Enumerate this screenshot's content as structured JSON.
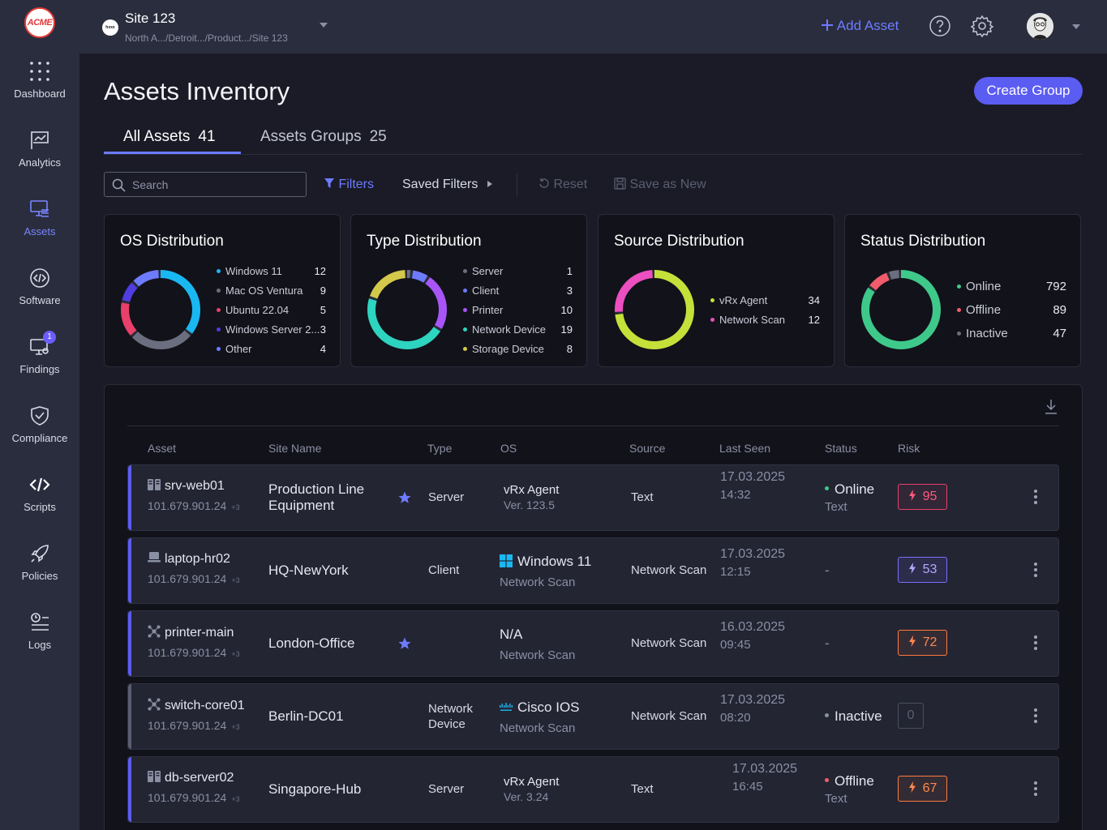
{
  "brand": {
    "logo_text": "ACME"
  },
  "sidebar": {
    "items": [
      {
        "label": "Dashboard",
        "icon": "grid-dots-icon"
      },
      {
        "label": "Analytics",
        "icon": "chart-flag-icon"
      },
      {
        "label": "Assets",
        "icon": "monitor-stack-icon",
        "active": true
      },
      {
        "label": "Software",
        "icon": "code-hex-icon"
      },
      {
        "label": "Findings",
        "icon": "monitor-bug-icon",
        "badge": "1"
      },
      {
        "label": "Compliance",
        "icon": "shield-check-icon"
      },
      {
        "label": "Scripts",
        "icon": "code-brackets-icon"
      },
      {
        "label": "Policies",
        "icon": "rocket-icon"
      },
      {
        "label": "Logs",
        "icon": "list-clock-icon"
      }
    ]
  },
  "topbar": {
    "site_dot": "hxxx",
    "site_title": "Site 123",
    "breadcrumb": "North A.../Detroit.../Product.../Site 123",
    "add_asset": "Add Asset"
  },
  "page": {
    "title": "Assets Inventory",
    "create_group": "Create Group",
    "tabs": [
      {
        "label": "All Assets",
        "count": "41",
        "active": true
      },
      {
        "label": "Assets Groups",
        "count": "25"
      }
    ]
  },
  "toolbar": {
    "search_placeholder": "Search",
    "filters": "Filters",
    "saved_filters": "Saved Filters",
    "reset": "Reset",
    "save_as_new": "Save as New"
  },
  "cards": [
    {
      "title": "OS Distribution",
      "items": [
        {
          "label": "Windows 11",
          "value": "12",
          "color": "#1ab8f2"
        },
        {
          "label": "Mac OS Ventura",
          "value": "9",
          "color": "#6b6e7e"
        },
        {
          "label": "Ubuntu 22.04",
          "value": "5",
          "color": "#e8406a"
        },
        {
          "label": "Windows Server 2...",
          "value": "3",
          "color": "#4f3de0"
        },
        {
          "label": "Other",
          "value": "4",
          "color": "#6d7bff"
        }
      ]
    },
    {
      "title": "Type Distribution",
      "items": [
        {
          "label": "Server",
          "value": "1",
          "color": "#6b6e7e"
        },
        {
          "label": "Client",
          "value": "3",
          "color": "#6d7bff"
        },
        {
          "label": "Printer",
          "value": "10",
          "color": "#a855f7"
        },
        {
          "label": "Network Device",
          "value": "19",
          "color": "#2dd4bf"
        },
        {
          "label": "Storage Device",
          "value": "8",
          "color": "#d4c84a"
        }
      ]
    },
    {
      "title": "Source Distribution",
      "items": [
        {
          "label": "vRx Agent",
          "value": "34",
          "color": "#c6e03a"
        },
        {
          "label": "Network Scan",
          "value": "12",
          "color": "#ec4fbf"
        }
      ]
    },
    {
      "title": "Status Distribution",
      "items": [
        {
          "label": "Online",
          "value": "792",
          "color": "#3ec98a"
        },
        {
          "label": "Offline",
          "value": "89",
          "color": "#f25c6a"
        },
        {
          "label": "Inactive",
          "value": "47",
          "color": "#6b6e7e"
        }
      ]
    }
  ],
  "table": {
    "headers": [
      "Asset",
      "Site Name",
      "Type",
      "OS",
      "Source",
      "Last Seen",
      "Status",
      "Risk"
    ],
    "rows": [
      {
        "asset": "srv-web01",
        "asset_icon": "server-icon",
        "ip": "101.679.901.24",
        "ip_more": "+3",
        "site": "Production Line Equipment",
        "starred": true,
        "type": "Server",
        "os": "vRx Agent",
        "os_sub": "Ver. 123.5",
        "os_icon": "",
        "source": "Text",
        "last_seen_date": "17.03.2025",
        "last_seen_time": "14:32",
        "status": "Online",
        "status_sub": "Text",
        "status_color": "#3ec98a",
        "risk": "95",
        "risk_level": "red",
        "accent": "blue"
      },
      {
        "asset": "laptop-hr02",
        "asset_icon": "laptop-icon",
        "ip": "101.679.901.24",
        "ip_more": "+3",
        "site": "HQ-NewYork",
        "starred": false,
        "type": "Client",
        "os": "Windows 11",
        "os_sub": "Network Scan",
        "os_icon": "windows-icon",
        "source": "Network Scan",
        "last_seen_date": "17.03.2025",
        "last_seen_time": "12:15",
        "status": "-",
        "status_sub": "",
        "status_color": "",
        "risk": "53",
        "risk_level": "purple",
        "accent": "blue"
      },
      {
        "asset": "printer-main",
        "asset_icon": "network-node-icon",
        "ip": "101.679.901.24",
        "ip_more": "+3",
        "site": "London-Office",
        "starred": true,
        "type": "",
        "os": "N/A",
        "os_sub": "Network Scan",
        "os_icon": "",
        "source": "Network Scan",
        "last_seen_date": "16.03.2025",
        "last_seen_time": "09:45",
        "status": "-",
        "status_sub": "",
        "status_color": "",
        "risk": "72",
        "risk_level": "orange",
        "accent": "blue"
      },
      {
        "asset": "switch-core01",
        "asset_icon": "network-node-icon",
        "ip": "101.679.901.24",
        "ip_more": "+3",
        "site": "Berlin-DC01",
        "starred": false,
        "type": "Network Device",
        "os": "Cisco IOS",
        "os_sub": "Network Scan",
        "os_icon": "cisco-icon",
        "source": "Network Scan",
        "last_seen_date": "17.03.2025",
        "last_seen_time": "08:20",
        "status": "Inactive",
        "status_sub": "",
        "status_color": "#8a8fa3",
        "risk": "0",
        "risk_level": "grey",
        "accent": "grey"
      },
      {
        "asset": "db-server02",
        "asset_icon": "server-icon",
        "ip": "101.679.901.24",
        "ip_more": "+3",
        "site": "Singapore-Hub",
        "starred": false,
        "type": "Server",
        "os": "vRx Agent",
        "os_sub": "Ver. 3.24",
        "os_icon": "",
        "source": "Text",
        "last_seen_date": "17.03.2025",
        "last_seen_time": "16:45",
        "status": "Offline",
        "status_sub": "Text",
        "status_color": "#f25c6a",
        "risk": "67",
        "risk_level": "orange",
        "accent": "blue"
      }
    ]
  }
}
